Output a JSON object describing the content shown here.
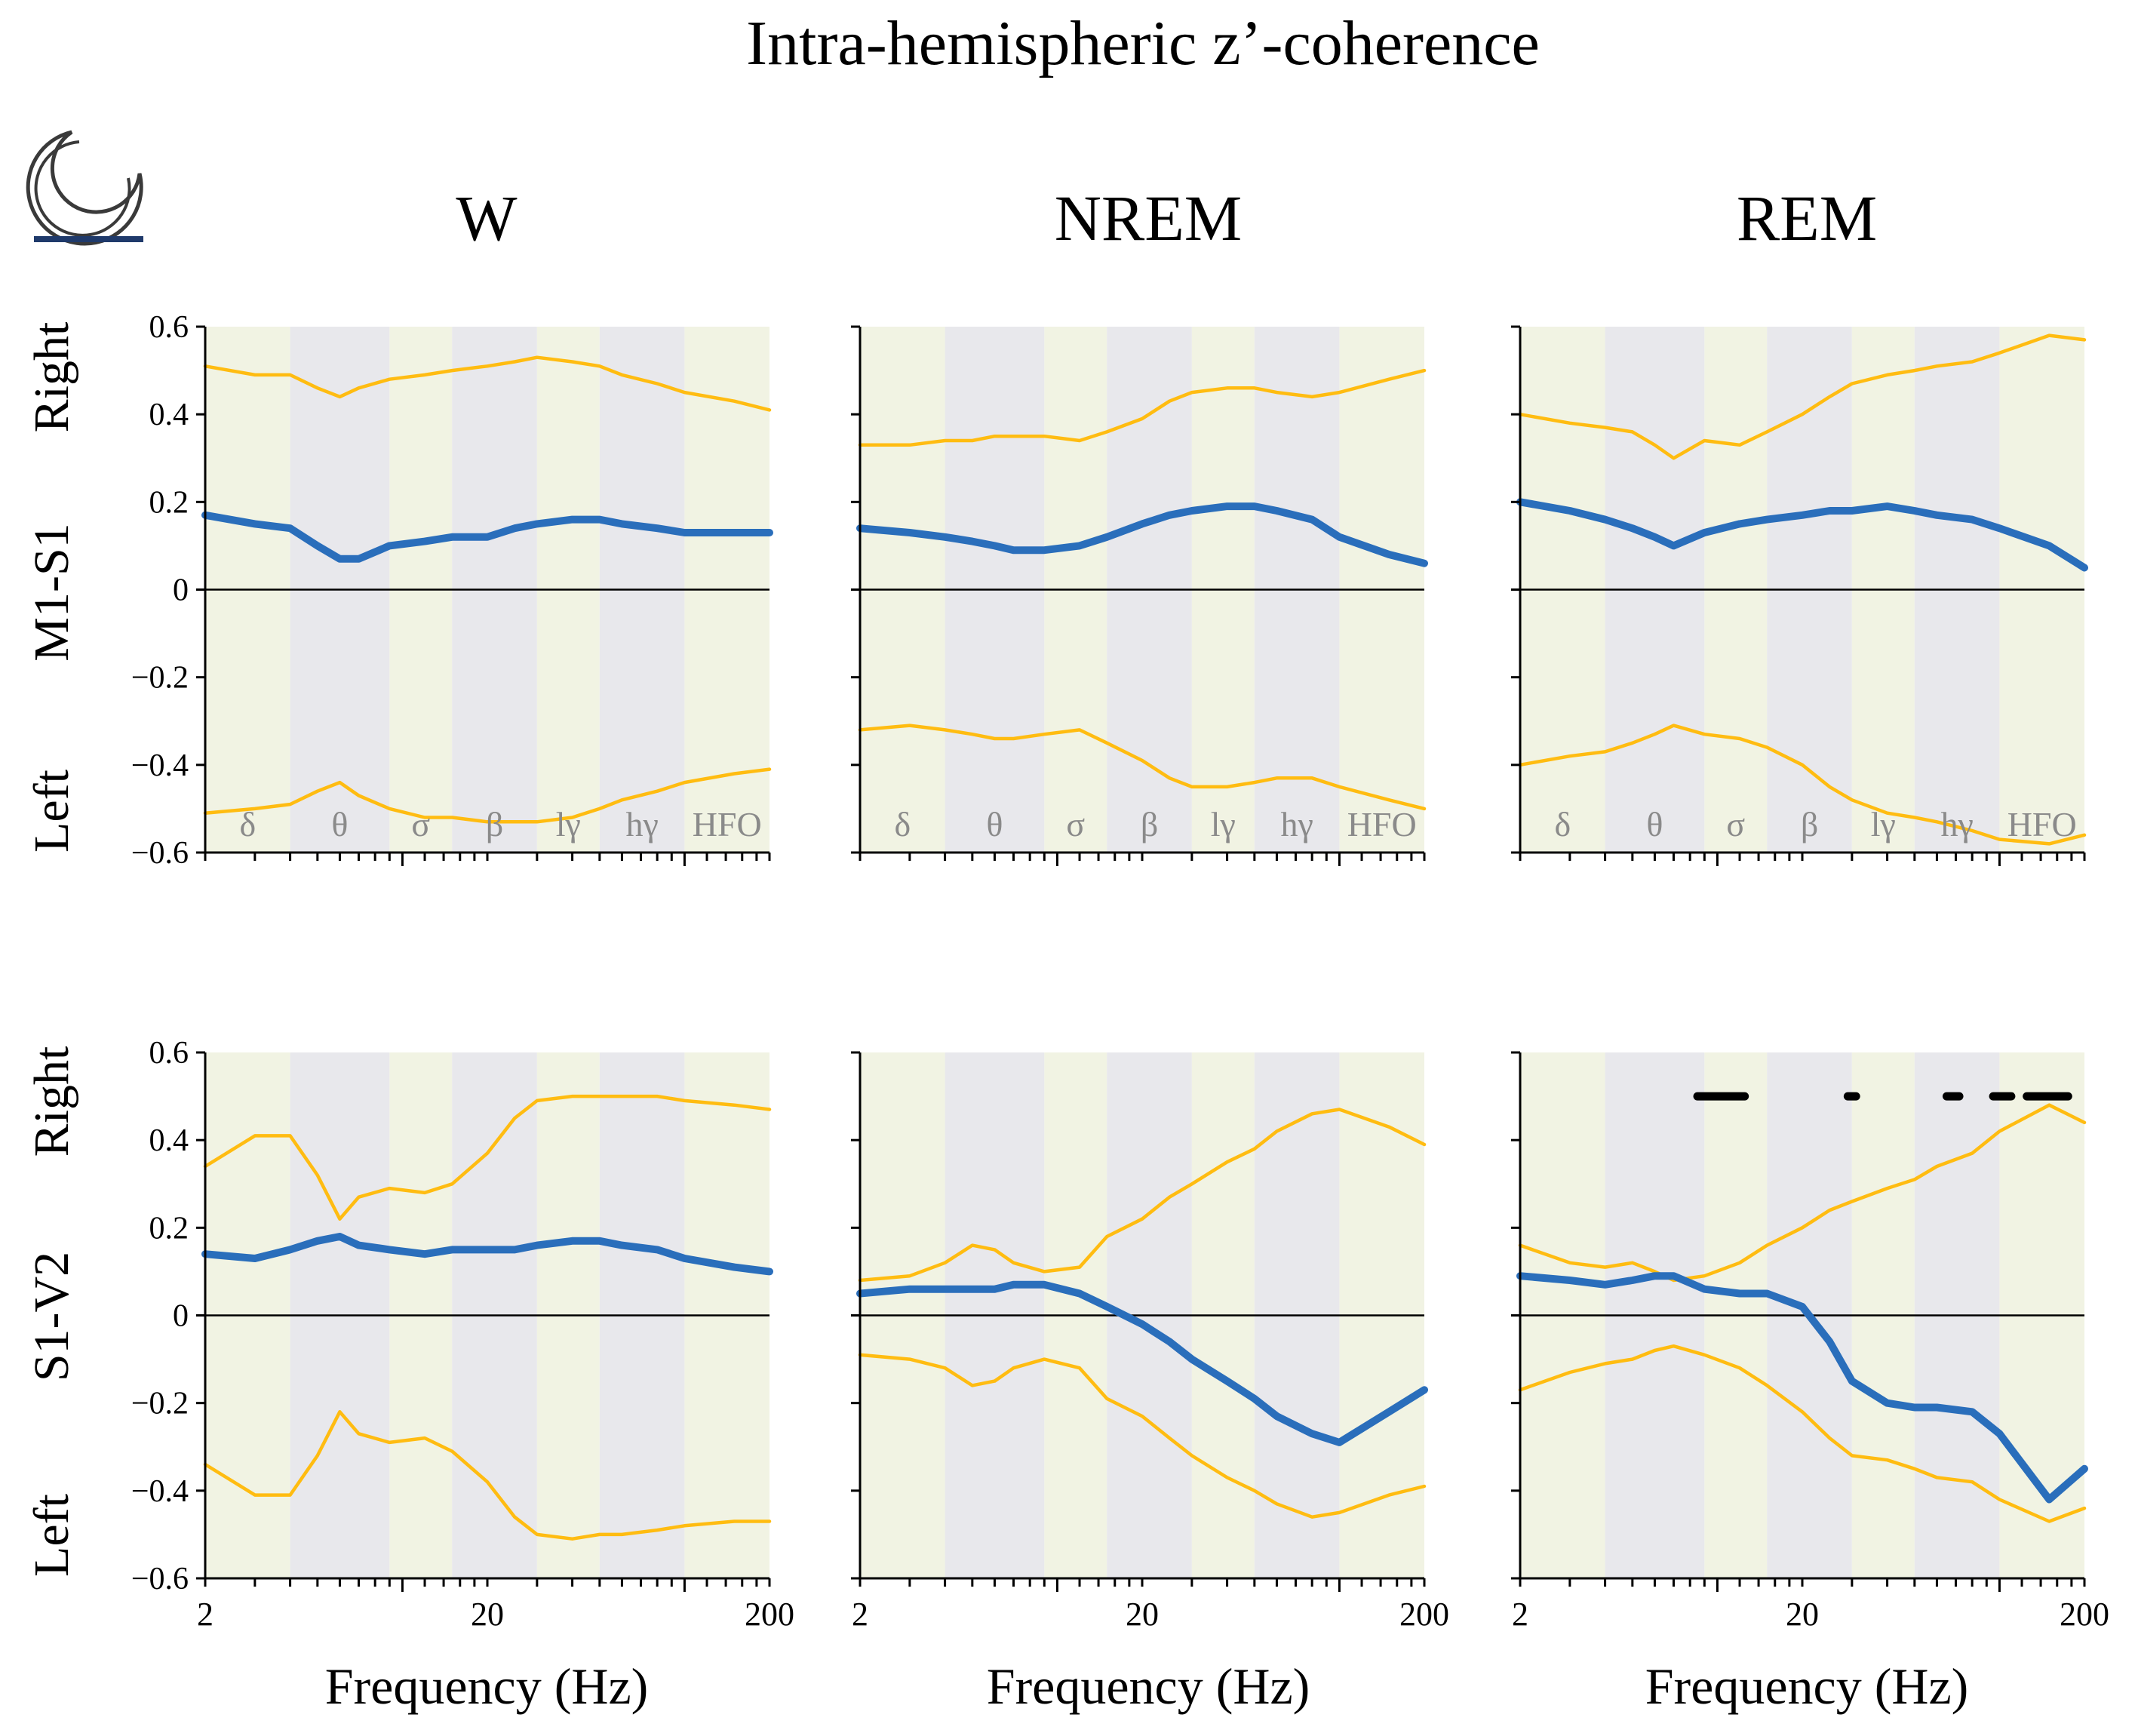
{
  "title": "Intra-hemispheric z’-coherence",
  "sleep_icon": "moon-sleep-icon",
  "colors": {
    "orange": "#FFBC11",
    "blue": "#2A6EBB",
    "band_light": "#F1F3E3",
    "band_dark": "#E8E8EC",
    "axis": "#000000",
    "sig_marker": "#000000"
  },
  "columns": [
    "W",
    "NREM",
    "REM"
  ],
  "rows": [
    {
      "pair": "M1-S1",
      "left_word": "Left",
      "right_word": "Right"
    },
    {
      "pair": "S1-V2",
      "left_word": "Left",
      "right_word": "Right"
    }
  ],
  "y_ticks": [
    "0.6",
    "0.4",
    "0.2",
    "0",
    "−0.2",
    "−0.4",
    "−0.6"
  ],
  "x_ticks": [
    "2",
    "20",
    "200"
  ],
  "xlabel": "Frequency (Hz)",
  "bands": [
    {
      "symbol": "δ",
      "from": 2,
      "to": 4
    },
    {
      "symbol": "θ",
      "from": 4,
      "to": 9
    },
    {
      "symbol": "σ",
      "from": 9,
      "to": 15
    },
    {
      "symbol": "β",
      "from": 15,
      "to": 30
    },
    {
      "symbol": "lγ",
      "from": 30,
      "to": 50
    },
    {
      "symbol": "hγ",
      "from": 50,
      "to": 100
    },
    {
      "symbol": "HFO",
      "from": 100,
      "to": 200
    }
  ],
  "chart_data": [
    {
      "type": "line",
      "row": "M1-S1",
      "state": "W",
      "xscale": "log",
      "xlim": [
        2,
        200
      ],
      "ylim": [
        -0.6,
        0.6
      ],
      "x": [
        2,
        3,
        4,
        5,
        6,
        7,
        9,
        12,
        15,
        20,
        25,
        30,
        40,
        50,
        60,
        80,
        100,
        150,
        200
      ],
      "series": [
        {
          "name": "Right (orange)",
          "values": [
            0.51,
            0.49,
            0.49,
            0.46,
            0.44,
            0.46,
            0.48,
            0.49,
            0.5,
            0.51,
            0.52,
            0.53,
            0.52,
            0.51,
            0.49,
            0.47,
            0.45,
            0.43,
            0.41
          ]
        },
        {
          "name": "Left (orange)",
          "values": [
            -0.51,
            -0.5,
            -0.49,
            -0.46,
            -0.44,
            -0.47,
            -0.5,
            -0.52,
            -0.52,
            -0.53,
            -0.53,
            -0.53,
            -0.52,
            -0.5,
            -0.48,
            -0.46,
            -0.44,
            -0.42,
            -0.41
          ]
        },
        {
          "name": "Difference (blue)",
          "values": [
            0.17,
            0.15,
            0.14,
            0.1,
            0.07,
            0.07,
            0.1,
            0.11,
            0.12,
            0.12,
            0.14,
            0.15,
            0.16,
            0.16,
            0.15,
            0.14,
            0.13,
            0.13,
            0.13
          ]
        }
      ]
    },
    {
      "type": "line",
      "row": "M1-S1",
      "state": "NREM",
      "xscale": "log",
      "xlim": [
        2,
        200
      ],
      "ylim": [
        -0.6,
        0.6
      ],
      "x": [
        2,
        3,
        4,
        5,
        6,
        7,
        9,
        12,
        15,
        20,
        25,
        30,
        40,
        50,
        60,
        80,
        100,
        150,
        200
      ],
      "series": [
        {
          "name": "Right (orange)",
          "values": [
            0.33,
            0.33,
            0.34,
            0.34,
            0.35,
            0.35,
            0.35,
            0.34,
            0.36,
            0.39,
            0.43,
            0.45,
            0.46,
            0.46,
            0.45,
            0.44,
            0.45,
            0.48,
            0.5
          ]
        },
        {
          "name": "Left (orange)",
          "values": [
            -0.32,
            -0.31,
            -0.32,
            -0.33,
            -0.34,
            -0.34,
            -0.33,
            -0.32,
            -0.35,
            -0.39,
            -0.43,
            -0.45,
            -0.45,
            -0.44,
            -0.43,
            -0.43,
            -0.45,
            -0.48,
            -0.5
          ]
        },
        {
          "name": "Difference (blue)",
          "values": [
            0.14,
            0.13,
            0.12,
            0.11,
            0.1,
            0.09,
            0.09,
            0.1,
            0.12,
            0.15,
            0.17,
            0.18,
            0.19,
            0.19,
            0.18,
            0.16,
            0.12,
            0.08,
            0.06
          ]
        }
      ]
    },
    {
      "type": "line",
      "row": "M1-S1",
      "state": "REM",
      "xscale": "log",
      "xlim": [
        2,
        200
      ],
      "ylim": [
        -0.6,
        0.6
      ],
      "x": [
        2,
        3,
        4,
        5,
        6,
        7,
        9,
        12,
        15,
        20,
        25,
        30,
        40,
        50,
        60,
        80,
        100,
        150,
        200
      ],
      "series": [
        {
          "name": "Right (orange)",
          "values": [
            0.4,
            0.38,
            0.37,
            0.36,
            0.33,
            0.3,
            0.34,
            0.33,
            0.36,
            0.4,
            0.44,
            0.47,
            0.49,
            0.5,
            0.51,
            0.52,
            0.54,
            0.58,
            0.57
          ]
        },
        {
          "name": "Left (orange)",
          "values": [
            -0.4,
            -0.38,
            -0.37,
            -0.35,
            -0.33,
            -0.31,
            -0.33,
            -0.34,
            -0.36,
            -0.4,
            -0.45,
            -0.48,
            -0.51,
            -0.52,
            -0.53,
            -0.55,
            -0.57,
            -0.58,
            -0.56
          ]
        },
        {
          "name": "Difference (blue)",
          "values": [
            0.2,
            0.18,
            0.16,
            0.14,
            0.12,
            0.1,
            0.13,
            0.15,
            0.16,
            0.17,
            0.18,
            0.18,
            0.19,
            0.18,
            0.17,
            0.16,
            0.14,
            0.1,
            0.05
          ]
        }
      ]
    },
    {
      "type": "line",
      "row": "S1-V2",
      "state": "W",
      "xscale": "log",
      "xlim": [
        2,
        200
      ],
      "ylim": [
        -0.6,
        0.6
      ],
      "x": [
        2,
        3,
        4,
        5,
        6,
        7,
        9,
        12,
        15,
        20,
        25,
        30,
        40,
        50,
        60,
        80,
        100,
        150,
        200
      ],
      "series": [
        {
          "name": "Right (orange)",
          "values": [
            0.34,
            0.41,
            0.41,
            0.32,
            0.22,
            0.27,
            0.29,
            0.28,
            0.3,
            0.37,
            0.45,
            0.49,
            0.5,
            0.5,
            0.5,
            0.5,
            0.49,
            0.48,
            0.47
          ]
        },
        {
          "name": "Left (orange)",
          "values": [
            -0.34,
            -0.41,
            -0.41,
            -0.32,
            -0.22,
            -0.27,
            -0.29,
            -0.28,
            -0.31,
            -0.38,
            -0.46,
            -0.5,
            -0.51,
            -0.5,
            -0.5,
            -0.49,
            -0.48,
            -0.47,
            -0.47
          ]
        },
        {
          "name": "Difference (blue)",
          "values": [
            0.14,
            0.13,
            0.15,
            0.17,
            0.18,
            0.16,
            0.15,
            0.14,
            0.15,
            0.15,
            0.15,
            0.16,
            0.17,
            0.17,
            0.16,
            0.15,
            0.13,
            0.11,
            0.1
          ]
        }
      ]
    },
    {
      "type": "line",
      "row": "S1-V2",
      "state": "NREM",
      "xscale": "log",
      "xlim": [
        2,
        200
      ],
      "ylim": [
        -0.6,
        0.6
      ],
      "x": [
        2,
        3,
        4,
        5,
        6,
        7,
        9,
        12,
        15,
        20,
        25,
        30,
        40,
        50,
        60,
        80,
        100,
        150,
        200
      ],
      "series": [
        {
          "name": "Right (orange)",
          "values": [
            0.08,
            0.09,
            0.12,
            0.16,
            0.15,
            0.12,
            0.1,
            0.11,
            0.18,
            0.22,
            0.27,
            0.3,
            0.35,
            0.38,
            0.42,
            0.46,
            0.47,
            0.43,
            0.39
          ]
        },
        {
          "name": "Left (orange)",
          "values": [
            -0.09,
            -0.1,
            -0.12,
            -0.16,
            -0.15,
            -0.12,
            -0.1,
            -0.12,
            -0.19,
            -0.23,
            -0.28,
            -0.32,
            -0.37,
            -0.4,
            -0.43,
            -0.46,
            -0.45,
            -0.41,
            -0.39
          ]
        },
        {
          "name": "Difference (blue)",
          "values": [
            0.05,
            0.06,
            0.06,
            0.06,
            0.06,
            0.07,
            0.07,
            0.05,
            0.02,
            -0.02,
            -0.06,
            -0.1,
            -0.15,
            -0.19,
            -0.23,
            -0.27,
            -0.29,
            -0.22,
            -0.17
          ]
        }
      ]
    },
    {
      "type": "line",
      "row": "S1-V2",
      "state": "REM",
      "xscale": "log",
      "xlim": [
        2,
        200
      ],
      "ylim": [
        -0.6,
        0.6
      ],
      "x": [
        2,
        3,
        4,
        5,
        6,
        7,
        9,
        12,
        15,
        20,
        25,
        30,
        40,
        50,
        60,
        80,
        100,
        150,
        200
      ],
      "series": [
        {
          "name": "Right (orange)",
          "values": [
            0.16,
            0.12,
            0.11,
            0.12,
            0.1,
            0.08,
            0.09,
            0.12,
            0.16,
            0.2,
            0.24,
            0.26,
            0.29,
            0.31,
            0.34,
            0.37,
            0.42,
            0.48,
            0.44
          ]
        },
        {
          "name": "Left (orange)",
          "values": [
            -0.17,
            -0.13,
            -0.11,
            -0.1,
            -0.08,
            -0.07,
            -0.09,
            -0.12,
            -0.16,
            -0.22,
            -0.28,
            -0.32,
            -0.33,
            -0.35,
            -0.37,
            -0.38,
            -0.42,
            -0.47,
            -0.44
          ]
        },
        {
          "name": "Difference (blue)",
          "values": [
            0.09,
            0.08,
            0.07,
            0.08,
            0.09,
            0.09,
            0.06,
            0.05,
            0.05,
            0.02,
            -0.06,
            -0.15,
            -0.2,
            -0.21,
            -0.21,
            -0.22,
            -0.27,
            -0.42,
            -0.35
          ]
        }
      ],
      "significance_segments_hz": [
        [
          8.5,
          12.5
        ],
        [
          29,
          31
        ],
        [
          65,
          72
        ],
        [
          95,
          110
        ],
        [
          125,
          175
        ]
      ],
      "significance_y": 0.5
    }
  ]
}
